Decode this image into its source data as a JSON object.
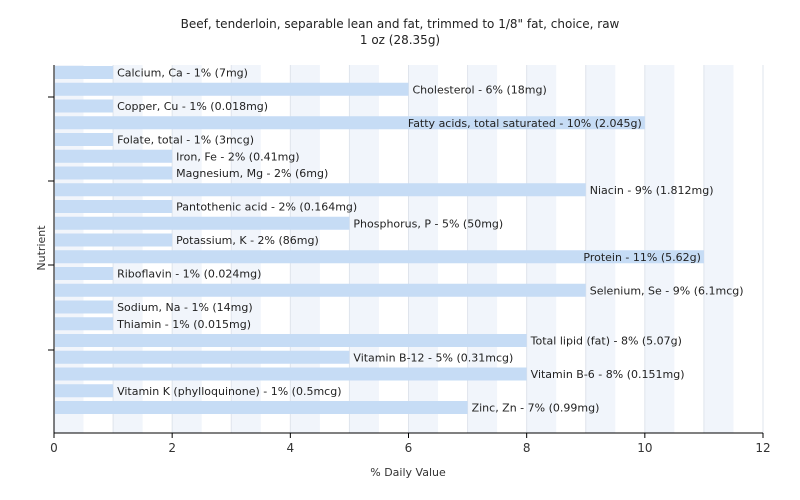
{
  "chart_data": {
    "type": "bar",
    "orientation": "horizontal",
    "title": "Beef, tenderloin, separable lean and fat, trimmed to 1/8\" fat, choice, raw",
    "subtitle": "1 oz (28.35g)",
    "xlabel": "% Daily Value",
    "ylabel": "Nutrient",
    "xlim": [
      0,
      12
    ],
    "xticks": [
      "0",
      "2",
      "4",
      "6",
      "8",
      "10",
      "12"
    ],
    "grid": true,
    "bar_color": "#c6dcf5",
    "categories": [
      "Calcium, Ca",
      "Cholesterol",
      "Copper, Cu",
      "Fatty acids, total saturated",
      "Folate, total",
      "Iron, Fe",
      "Magnesium, Mg",
      "Niacin",
      "Pantothenic acid",
      "Phosphorus, P",
      "Potassium, K",
      "Protein",
      "Riboflavin",
      "Selenium, Se",
      "Sodium, Na",
      "Thiamin",
      "Total lipid (fat)",
      "Vitamin B-12",
      "Vitamin B-6",
      "Vitamin K (phylloquinone)",
      "Zinc, Zn"
    ],
    "values": [
      1,
      6,
      1,
      10,
      1,
      2,
      2,
      9,
      2,
      5,
      2,
      11,
      1,
      9,
      1,
      1,
      8,
      5,
      8,
      1,
      7
    ],
    "labels": [
      "Calcium, Ca - 1% (7mg)",
      "Cholesterol - 6% (18mg)",
      "Copper, Cu - 1% (0.018mg)",
      "Fatty acids, total saturated - 10% (2.045g)",
      "Folate, total - 1% (3mcg)",
      "Iron, Fe - 2% (0.41mg)",
      "Magnesium, Mg - 2% (6mg)",
      "Niacin - 9% (1.812mg)",
      "Pantothenic acid - 2% (0.164mg)",
      "Phosphorus, P - 5% (50mg)",
      "Potassium, K - 2% (86mg)",
      "Protein - 11% (5.62g)",
      "Riboflavin - 1% (0.024mg)",
      "Selenium, Se - 9% (6.1mcg)",
      "Sodium, Na - 1% (14mg)",
      "Thiamin - 1% (0.015mg)",
      "Total lipid (fat) - 8% (5.07g)",
      "Vitamin B-12 - 5% (0.31mcg)",
      "Vitamin B-6 - 8% (0.151mg)",
      "Vitamin K (phylloquinone) - 1% (0.5mcg)",
      "Zinc, Zn - 7% (0.99mg)"
    ]
  }
}
